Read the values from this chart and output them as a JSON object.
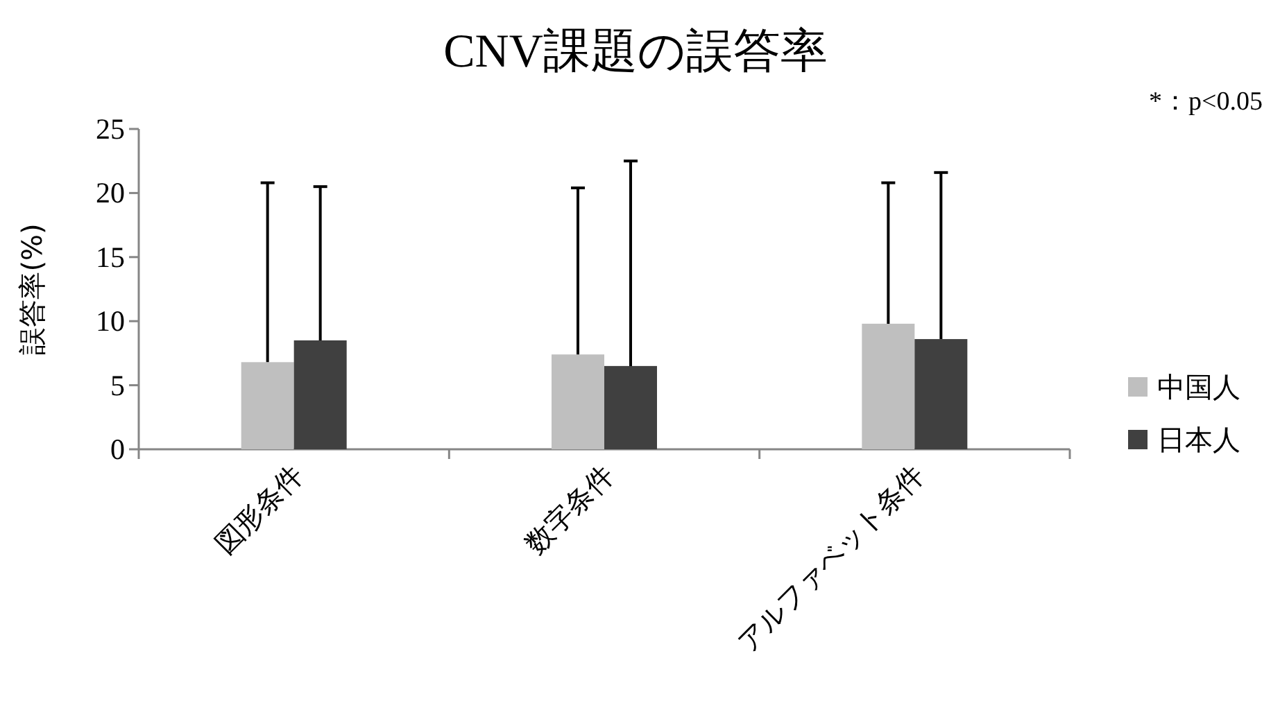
{
  "chart_data": {
    "type": "bar",
    "title": "CNV課題の誤答率",
    "ylabel": "誤答率(%)",
    "annotations": [
      "*：p<0.05"
    ],
    "categories": [
      "図形条件",
      "数字条件",
      "アルファベット条件"
    ],
    "series": [
      {
        "name": "中国人",
        "color": "#bfbfbf",
        "values": [
          6.8,
          7.4,
          9.8
        ],
        "errors": [
          [
            6.8,
            20.8
          ],
          [
            7.4,
            20.4
          ],
          [
            9.8,
            20.8
          ]
        ]
      },
      {
        "name": "日本人",
        "color": "#404040",
        "values": [
          8.5,
          6.5,
          8.6
        ],
        "errors": [
          [
            8.5,
            20.5
          ],
          [
            6.5,
            22.5
          ],
          [
            8.6,
            21.6
          ]
        ]
      }
    ],
    "ylim": [
      0,
      25
    ],
    "yticks": [
      0,
      5,
      10,
      15,
      20,
      25
    ],
    "grid": false,
    "legend": "right"
  }
}
